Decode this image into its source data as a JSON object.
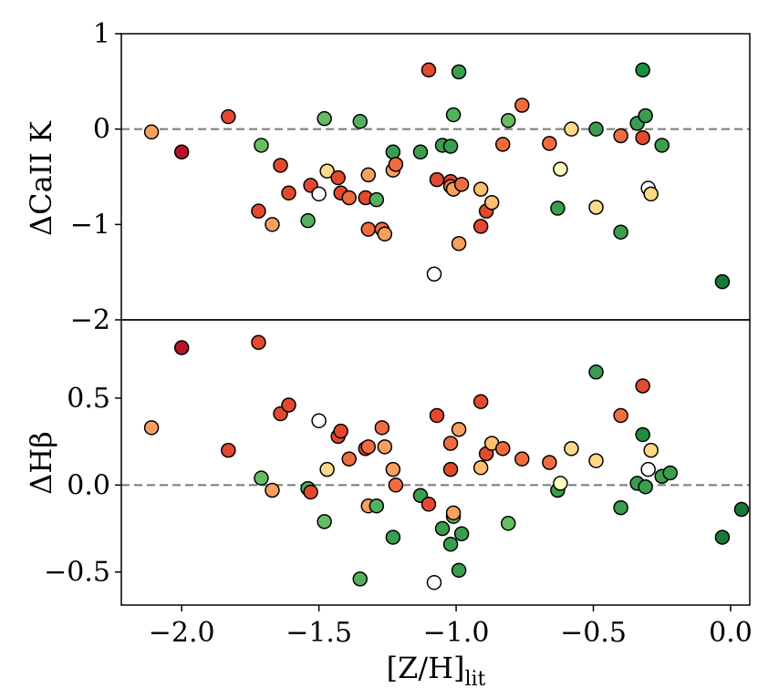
{
  "figure": {
    "xlabel_main": "[Z/H]",
    "xlabel_sub": "lit"
  },
  "chart_data": [
    {
      "type": "scatter",
      "panel": "top",
      "ylabel": "ΔCaII K",
      "xlim": [
        -2.22,
        0.07
      ],
      "ylim": [
        -2,
        1
      ],
      "ytick_values": [
        1,
        0,
        -1,
        -2
      ],
      "ytick_labels": [
        "1",
        "0",
        "−1",
        "−2"
      ],
      "reference_line_y": 0,
      "points": [
        {
          "x": -2.11,
          "y": -0.03,
          "c": "#f8a05f"
        },
        {
          "x": -2.0,
          "y": -0.24,
          "c": "#b4142a"
        },
        {
          "x": -1.83,
          "y": 0.13,
          "c": "#e3492e"
        },
        {
          "x": -1.72,
          "y": -0.86,
          "c": "#e3492e"
        },
        {
          "x": -1.71,
          "y": -0.17,
          "c": "#66bd63"
        },
        {
          "x": -1.67,
          "y": -1.0,
          "c": "#f8a05f"
        },
        {
          "x": -1.64,
          "y": -0.38,
          "c": "#e3492e"
        },
        {
          "x": -1.61,
          "y": -0.67,
          "c": "#e3492e"
        },
        {
          "x": -1.54,
          "y": -0.96,
          "c": "#52b15e"
        },
        {
          "x": -1.53,
          "y": -0.59,
          "c": "#e3492e"
        },
        {
          "x": -1.5,
          "y": -0.68,
          "c": "#ffffff"
        },
        {
          "x": -1.48,
          "y": 0.11,
          "c": "#66bd63"
        },
        {
          "x": -1.47,
          "y": -0.44,
          "c": "#fed98a"
        },
        {
          "x": -1.43,
          "y": -0.51,
          "c": "#e3492e"
        },
        {
          "x": -1.42,
          "y": -0.67,
          "c": "#e3492e"
        },
        {
          "x": -1.39,
          "y": -0.72,
          "c": "#f06c40"
        },
        {
          "x": -1.35,
          "y": 0.08,
          "c": "#52b15e"
        },
        {
          "x": -1.33,
          "y": -0.72,
          "c": "#e3492e"
        },
        {
          "x": -1.32,
          "y": -0.48,
          "c": "#f8a05f"
        },
        {
          "x": -1.32,
          "y": -1.05,
          "c": "#f06c40"
        },
        {
          "x": -1.29,
          "y": -0.74,
          "c": "#52b15e"
        },
        {
          "x": -1.27,
          "y": -1.05,
          "c": "#f06c40"
        },
        {
          "x": -1.26,
          "y": -1.1,
          "c": "#f8a05f"
        },
        {
          "x": -1.23,
          "y": -0.24,
          "c": "#3a9e4e"
        },
        {
          "x": -1.23,
          "y": -0.43,
          "c": "#f8a05f"
        },
        {
          "x": -1.22,
          "y": -0.37,
          "c": "#f06c40"
        },
        {
          "x": -1.13,
          "y": -0.24,
          "c": "#3a9e4e"
        },
        {
          "x": -1.1,
          "y": 0.62,
          "c": "#e3492e"
        },
        {
          "x": -1.08,
          "y": -1.52,
          "c": "#ffffff"
        },
        {
          "x": -1.07,
          "y": -0.53,
          "c": "#e3492e"
        },
        {
          "x": -1.05,
          "y": -0.17,
          "c": "#3a9e4e"
        },
        {
          "x": -1.02,
          "y": -0.55,
          "c": "#e3492e"
        },
        {
          "x": -1.02,
          "y": -0.6,
          "c": "#f06c40"
        },
        {
          "x": -1.02,
          "y": -0.18,
          "c": "#3a9e4e"
        },
        {
          "x": -1.01,
          "y": 0.15,
          "c": "#52b15e"
        },
        {
          "x": -1.01,
          "y": -0.63,
          "c": "#f8a05f"
        },
        {
          "x": -0.99,
          "y": 0.6,
          "c": "#3a9e4e"
        },
        {
          "x": -0.99,
          "y": -1.2,
          "c": "#f8a05f"
        },
        {
          "x": -0.98,
          "y": -0.58,
          "c": "#f06c40"
        },
        {
          "x": -0.91,
          "y": -1.02,
          "c": "#e3492e"
        },
        {
          "x": -0.91,
          "y": -0.63,
          "c": "#fdbe6e"
        },
        {
          "x": -0.89,
          "y": -0.86,
          "c": "#e3492e"
        },
        {
          "x": -0.87,
          "y": -0.77,
          "c": "#fdbe6e"
        },
        {
          "x": -0.83,
          "y": -0.16,
          "c": "#f06c40"
        },
        {
          "x": -0.81,
          "y": 0.09,
          "c": "#66bd63"
        },
        {
          "x": -0.76,
          "y": 0.25,
          "c": "#f06c40"
        },
        {
          "x": -0.66,
          "y": -0.15,
          "c": "#f06c40"
        },
        {
          "x": -0.63,
          "y": -0.83,
          "c": "#3a9e4e"
        },
        {
          "x": -0.62,
          "y": -0.42,
          "c": "#ffffbf"
        },
        {
          "x": -0.58,
          "y": 0.0,
          "c": "#fed98a"
        },
        {
          "x": -0.49,
          "y": -0.82,
          "c": "#fed98a"
        },
        {
          "x": -0.49,
          "y": 0.0,
          "c": "#3a9e4e"
        },
        {
          "x": -0.4,
          "y": -1.08,
          "c": "#3a9e4e"
        },
        {
          "x": -0.4,
          "y": -0.07,
          "c": "#f06c40"
        },
        {
          "x": -0.34,
          "y": 0.06,
          "c": "#3a9e4e"
        },
        {
          "x": -0.32,
          "y": 0.62,
          "c": "#1a8f40"
        },
        {
          "x": -0.32,
          "y": -0.09,
          "c": "#e3492e"
        },
        {
          "x": -0.31,
          "y": 0.14,
          "c": "#3a9e4e"
        },
        {
          "x": -0.3,
          "y": -0.62,
          "c": "#ffffff"
        },
        {
          "x": -0.29,
          "y": -0.68,
          "c": "#fed98a"
        },
        {
          "x": -0.25,
          "y": -0.17,
          "c": "#3a9e4e"
        },
        {
          "x": -0.03,
          "y": -1.6,
          "c": "#1a7837"
        }
      ]
    },
    {
      "type": "scatter",
      "panel": "bottom",
      "ylabel": "ΔHβ",
      "xlim": [
        -2.22,
        0.07
      ],
      "ylim": [
        -0.69,
        0.95
      ],
      "ytick_values": [
        0.5,
        0.0,
        -0.5
      ],
      "ytick_labels": [
        "0.5",
        "0.0",
        "−0.5"
      ],
      "xtick_values": [
        -2.0,
        -1.5,
        -1.0,
        -0.5,
        0.0
      ],
      "xtick_labels": [
        "−2.0",
        "−1.5",
        "−1.0",
        "−0.5",
        "0.0"
      ],
      "reference_line_y": 0,
      "points": [
        {
          "x": -2.11,
          "y": 0.33,
          "c": "#f8a05f"
        },
        {
          "x": -2.0,
          "y": 0.79,
          "c": "#b4142a"
        },
        {
          "x": -1.83,
          "y": 0.2,
          "c": "#e3492e"
        },
        {
          "x": -1.72,
          "y": 0.82,
          "c": "#e3492e"
        },
        {
          "x": -1.71,
          "y": 0.04,
          "c": "#66bd63"
        },
        {
          "x": -1.67,
          "y": -0.03,
          "c": "#f8a05f"
        },
        {
          "x": -1.64,
          "y": 0.41,
          "c": "#e3492e"
        },
        {
          "x": -1.61,
          "y": 0.46,
          "c": "#e3492e"
        },
        {
          "x": -1.54,
          "y": -0.02,
          "c": "#52b15e"
        },
        {
          "x": -1.53,
          "y": -0.04,
          "c": "#e3492e"
        },
        {
          "x": -1.5,
          "y": 0.37,
          "c": "#ffffff"
        },
        {
          "x": -1.48,
          "y": -0.21,
          "c": "#66bd63"
        },
        {
          "x": -1.47,
          "y": 0.09,
          "c": "#fed98a"
        },
        {
          "x": -1.43,
          "y": 0.28,
          "c": "#e3492e"
        },
        {
          "x": -1.42,
          "y": 0.31,
          "c": "#e3492e"
        },
        {
          "x": -1.39,
          "y": 0.15,
          "c": "#f06c40"
        },
        {
          "x": -1.35,
          "y": -0.54,
          "c": "#52b15e"
        },
        {
          "x": -1.33,
          "y": 0.21,
          "c": "#e3492e"
        },
        {
          "x": -1.32,
          "y": -0.12,
          "c": "#f8a05f"
        },
        {
          "x": -1.32,
          "y": 0.22,
          "c": "#f06c40"
        },
        {
          "x": -1.29,
          "y": -0.12,
          "c": "#52b15e"
        },
        {
          "x": -1.27,
          "y": 0.33,
          "c": "#f06c40"
        },
        {
          "x": -1.26,
          "y": 0.22,
          "c": "#f8a05f"
        },
        {
          "x": -1.23,
          "y": -0.3,
          "c": "#3a9e4e"
        },
        {
          "x": -1.23,
          "y": 0.09,
          "c": "#f8a05f"
        },
        {
          "x": -1.22,
          "y": 0.0,
          "c": "#f06c40"
        },
        {
          "x": -1.13,
          "y": -0.06,
          "c": "#3a9e4e"
        },
        {
          "x": -1.1,
          "y": -0.11,
          "c": "#e3492e"
        },
        {
          "x": -1.08,
          "y": -0.56,
          "c": "#ffffff"
        },
        {
          "x": -1.07,
          "y": 0.4,
          "c": "#e3492e"
        },
        {
          "x": -1.05,
          "y": -0.25,
          "c": "#3a9e4e"
        },
        {
          "x": -1.02,
          "y": 0.09,
          "c": "#e3492e"
        },
        {
          "x": -1.02,
          "y": 0.24,
          "c": "#f06c40"
        },
        {
          "x": -1.02,
          "y": -0.34,
          "c": "#3a9e4e"
        },
        {
          "x": -1.01,
          "y": -0.18,
          "c": "#52b15e"
        },
        {
          "x": -1.01,
          "y": -0.16,
          "c": "#f8a05f"
        },
        {
          "x": -0.99,
          "y": -0.49,
          "c": "#3a9e4e"
        },
        {
          "x": -0.99,
          "y": 0.32,
          "c": "#f8a05f"
        },
        {
          "x": -0.98,
          "y": -0.28,
          "c": "#3a9e4e"
        },
        {
          "x": -0.91,
          "y": 0.48,
          "c": "#e3492e"
        },
        {
          "x": -0.91,
          "y": 0.1,
          "c": "#fdbe6e"
        },
        {
          "x": -0.89,
          "y": 0.18,
          "c": "#e3492e"
        },
        {
          "x": -0.87,
          "y": 0.24,
          "c": "#fdbe6e"
        },
        {
          "x": -0.83,
          "y": 0.21,
          "c": "#f06c40"
        },
        {
          "x": -0.81,
          "y": -0.22,
          "c": "#66bd63"
        },
        {
          "x": -0.76,
          "y": 0.15,
          "c": "#f06c40"
        },
        {
          "x": -0.66,
          "y": 0.13,
          "c": "#f06c40"
        },
        {
          "x": -0.63,
          "y": -0.03,
          "c": "#3a9e4e"
        },
        {
          "x": -0.62,
          "y": 0.01,
          "c": "#ffffbf"
        },
        {
          "x": -0.58,
          "y": 0.21,
          "c": "#fed98a"
        },
        {
          "x": -0.49,
          "y": 0.14,
          "c": "#fed98a"
        },
        {
          "x": -0.49,
          "y": 0.65,
          "c": "#3a9e4e"
        },
        {
          "x": -0.4,
          "y": -0.13,
          "c": "#3a9e4e"
        },
        {
          "x": -0.4,
          "y": 0.4,
          "c": "#f06c40"
        },
        {
          "x": -0.34,
          "y": 0.01,
          "c": "#3a9e4e"
        },
        {
          "x": -0.32,
          "y": 0.29,
          "c": "#1a8f40"
        },
        {
          "x": -0.32,
          "y": 0.57,
          "c": "#e3492e"
        },
        {
          "x": -0.31,
          "y": -0.01,
          "c": "#3a9e4e"
        },
        {
          "x": -0.3,
          "y": 0.09,
          "c": "#ffffff"
        },
        {
          "x": -0.29,
          "y": 0.2,
          "c": "#fed98a"
        },
        {
          "x": -0.25,
          "y": 0.05,
          "c": "#3a9e4e"
        },
        {
          "x": -0.22,
          "y": 0.07,
          "c": "#3a9e4e"
        },
        {
          "x": -0.03,
          "y": -0.3,
          "c": "#1a7837"
        },
        {
          "x": 0.04,
          "y": -0.14,
          "c": "#1a7837"
        }
      ]
    }
  ]
}
